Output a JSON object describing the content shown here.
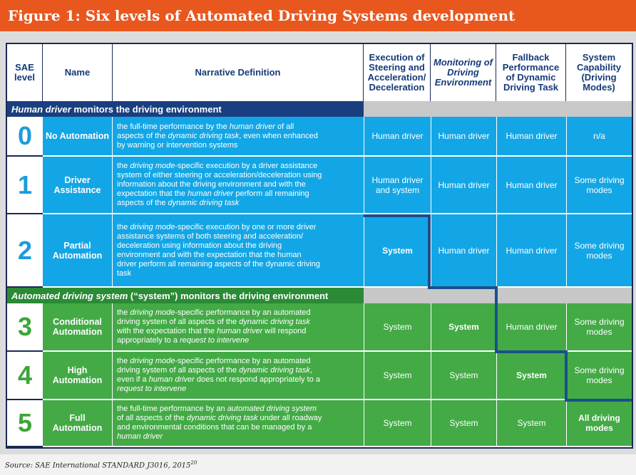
{
  "title": "Figure 1: Six levels of Automated Driving Systems development",
  "headers": {
    "level": "SAE level",
    "name": "Name",
    "definition": "Narrative Definition",
    "execution": "Execution of Steering and Acceleration/ Deceleration",
    "monitoring": "Monitoring of Driving Environment",
    "fallback": "Fallback Performance of Dynamic Driving Task",
    "capability": "System Capability (Driving Modes)"
  },
  "sections": {
    "human_bold": "Human driver",
    "human_rest": " monitors the driving environment",
    "auto_bold": "Automated driving system",
    "auto_mid": " (“system”) ",
    "auto_rest": "monitors the driving environment"
  },
  "levels": [
    {
      "num": "0",
      "name": "No Automation",
      "definition": [
        "the full-time performance by the human driver of all",
        "aspects of the dynamic driving task, even when enhanced",
        "by warning or intervention systems"
      ],
      "execution": "Human driver",
      "monitoring": "Human driver",
      "fallback": "Human driver",
      "capability": "n/a"
    },
    {
      "num": "1",
      "name": "Driver Assistance",
      "definition": [
        "the driving mode-specific execution by a driver assistance",
        "system of either steering or acceleration/deceleration using",
        "information about the driving environment and with the",
        "expectation that the human driver perform all remaining",
        "aspects of the dynamic driving task"
      ],
      "execution": "Human driver and system",
      "monitoring": "Human driver",
      "fallback": "Human driver",
      "capability": "Some driving modes"
    },
    {
      "num": "2",
      "name": "Partial Automation",
      "definition": [
        "the driving mode-specific execution by one or more driver",
        "assistance systems of both steering and acceleration/",
        "deceleration using information about the driving",
        "environment and with the expectation that the human",
        "driver perform all remaining aspects of the dynamic driving",
        "task"
      ],
      "execution": "System",
      "monitoring": "Human driver",
      "fallback": "Human driver",
      "capability": "Some driving modes"
    },
    {
      "num": "3",
      "name": "Conditional Automation",
      "definition": [
        "the driving mode-specific performance by an automated",
        "driving system of all aspects of the dynamic driving task",
        "with the expectation that the human driver will respond",
        "appropriately to a request to intervene"
      ],
      "execution": "System",
      "monitoring": "System",
      "fallback": "Human driver",
      "capability": "Some driving modes"
    },
    {
      "num": "4",
      "name": "High Automation",
      "definition": [
        "the driving mode-specific performance by an automated",
        "driving system of all aspects of the dynamic driving task,",
        "even if a human driver does not respond appropriately to a",
        "request to intervene"
      ],
      "execution": "System",
      "monitoring": "System",
      "fallback": "System",
      "capability": "Some driving modes"
    },
    {
      "num": "5",
      "name": "Full Automation",
      "definition": [
        "the full-time performance by an automated driving system",
        "of all aspects of the dynamic driving task under all roadway",
        "and environmental conditions that can be managed by a",
        "human driver"
      ],
      "execution": "System",
      "monitoring": "System",
      "fallback": "System",
      "capability": "All driving modes"
    }
  ],
  "source": {
    "text": "Source: SAE International STANDARD J3016, 2015",
    "ref": "20"
  },
  "colors": {
    "orange": "#e8571e",
    "blue": "#13a6e6",
    "green": "#43aa46",
    "navy": "#1a2a55"
  }
}
